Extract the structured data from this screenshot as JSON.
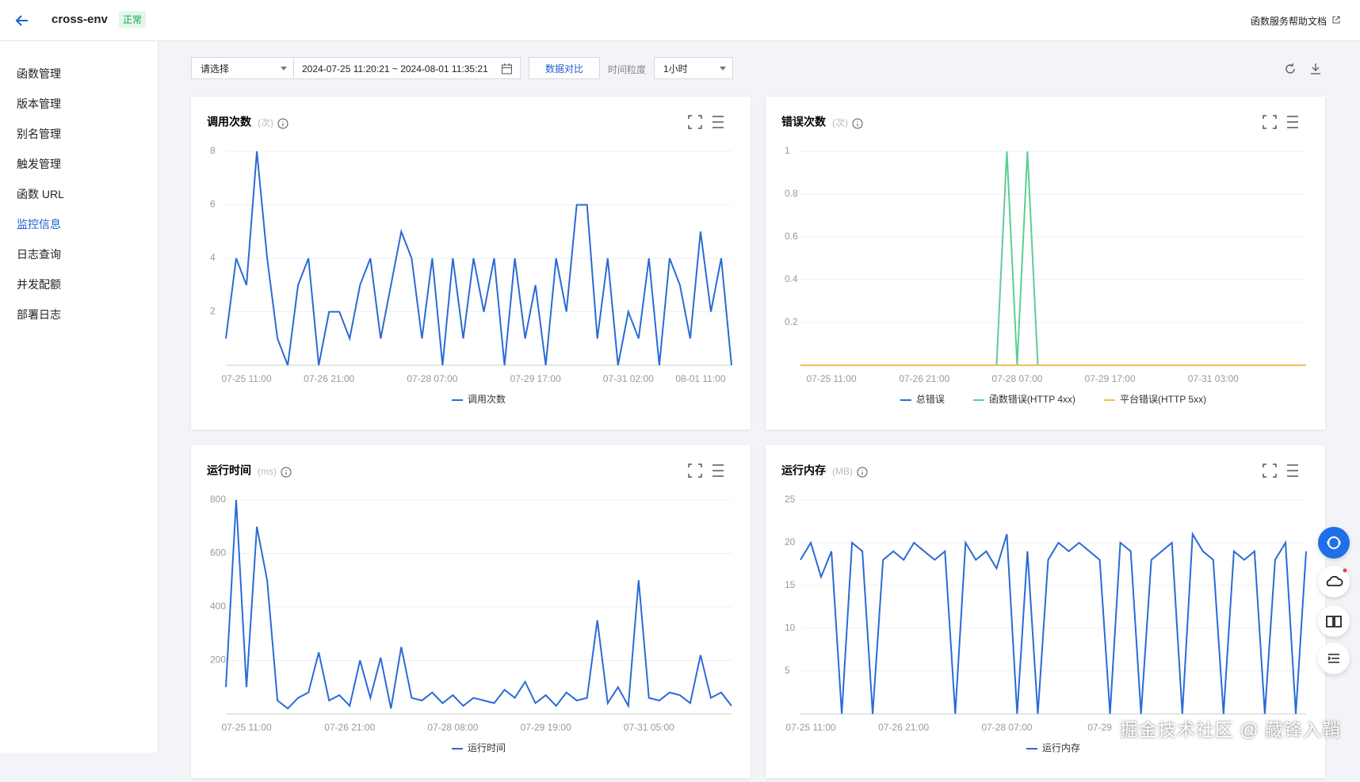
{
  "header": {
    "name": "cross-env",
    "status": "正常",
    "help_link": "函数服务帮助文档"
  },
  "sidebar": {
    "items": [
      "函数管理",
      "版本管理",
      "别名管理",
      "触发管理",
      "函数 URL",
      "监控信息",
      "日志查询",
      "并发配额",
      "部署日志"
    ],
    "active": 5
  },
  "toolbar": {
    "select_placeholder": "请选择",
    "date_range": "2024-07-25 11:20:21 ~ 2024-08-01 11:35:21",
    "compare_button": "数据对比",
    "granularity_label": "时间粒度",
    "granularity": "1小时"
  },
  "chart_data": [
    {
      "type": "line",
      "title": "调用次数",
      "unit": "(次)",
      "categories": [
        null,
        null,
        "07-25 11:00",
        null,
        null,
        null,
        null,
        null,
        null,
        null,
        "07-26 21:00",
        null,
        null,
        null,
        null,
        null,
        null,
        null,
        null,
        null,
        "07-28 07:00",
        null,
        null,
        null,
        null,
        null,
        null,
        null,
        null,
        null,
        "07-29 17:00",
        null,
        null,
        null,
        null,
        null,
        null,
        null,
        null,
        "07-31 02:00",
        null,
        null,
        null,
        null,
        null,
        null,
        "08-01 11:00",
        null,
        null,
        null
      ],
      "series": [
        {
          "name": "调用次数",
          "color": "#2a6bd6",
          "values": [
            1,
            4,
            3,
            8,
            4,
            1,
            0,
            3,
            4,
            0,
            2,
            2,
            1,
            3,
            4,
            1,
            3,
            5,
            4,
            1,
            4,
            0,
            4,
            1,
            4,
            2,
            4,
            0,
            4,
            1,
            3,
            0,
            4,
            2,
            6,
            6,
            1,
            4,
            0,
            2,
            1,
            4,
            0,
            4,
            3,
            1,
            5,
            2,
            4,
            0
          ]
        }
      ],
      "ylim": [
        0,
        8
      ],
      "yticks": [
        2,
        4,
        6,
        8
      ],
      "grid": true
    },
    {
      "type": "line",
      "title": "错误次数",
      "unit": "(次)",
      "categories": [
        null,
        null,
        null,
        "07-25 11:00",
        null,
        null,
        null,
        null,
        null,
        null,
        null,
        null,
        "07-26 21:00",
        null,
        null,
        null,
        null,
        null,
        null,
        null,
        null,
        "07-28 07:00",
        null,
        null,
        null,
        null,
        null,
        null,
        null,
        null,
        "07-29 17:00",
        null,
        null,
        null,
        null,
        null,
        null,
        null,
        null,
        null,
        "07-31 03:00",
        null,
        null,
        null,
        null,
        null,
        null,
        null,
        null,
        null
      ],
      "series": [
        {
          "name": "总错误",
          "color": "#2a6bd6",
          "values": [
            0,
            0,
            0,
            0,
            0,
            0,
            0,
            0,
            0,
            0,
            0,
            0,
            0,
            0,
            0,
            0,
            0,
            0,
            0,
            0,
            0,
            0,
            0,
            0,
            0,
            0,
            0,
            0,
            0,
            0,
            0,
            0,
            0,
            0,
            0,
            0,
            0,
            0,
            0,
            0,
            0,
            0,
            0,
            0,
            0,
            0,
            0,
            0,
            0,
            0
          ]
        },
        {
          "name": "函数错误(HTTP 4xx)",
          "color": "#5ccf93",
          "values": [
            0,
            0,
            0,
            0,
            0,
            0,
            0,
            0,
            0,
            0,
            0,
            0,
            0,
            0,
            0,
            0,
            0,
            0,
            0,
            0,
            1,
            0,
            1,
            0,
            0,
            0,
            0,
            0,
            0,
            0,
            0,
            0,
            0,
            0,
            0,
            0,
            0,
            0,
            0,
            0,
            0,
            0,
            0,
            0,
            0,
            0,
            0,
            0,
            0,
            0
          ]
        },
        {
          "name": "平台错误(HTTP 5xx)",
          "color": "#f3c24a",
          "values": [
            0,
            0,
            0,
            0,
            0,
            0,
            0,
            0,
            0,
            0,
            0,
            0,
            0,
            0,
            0,
            0,
            0,
            0,
            0,
            0,
            0,
            0,
            0,
            0,
            0,
            0,
            0,
            0,
            0,
            0,
            0,
            0,
            0,
            0,
            0,
            0,
            0,
            0,
            0,
            0,
            0,
            0,
            0,
            0,
            0,
            0,
            0,
            0,
            0,
            0
          ]
        }
      ],
      "ylim": [
        0,
        1
      ],
      "yticks": [
        0.2,
        0.4,
        0.6,
        0.8,
        1
      ],
      "grid": true
    },
    {
      "type": "line",
      "title": "运行时间",
      "unit": "(ms)",
      "categories": [
        null,
        null,
        "07-25 11:00",
        null,
        null,
        null,
        null,
        null,
        null,
        null,
        null,
        null,
        "07-26 21:00",
        null,
        null,
        null,
        null,
        null,
        null,
        null,
        null,
        null,
        "07-28 08:00",
        null,
        null,
        null,
        null,
        null,
        null,
        null,
        null,
        "07-29 19:00",
        null,
        null,
        null,
        null,
        null,
        null,
        null,
        null,
        null,
        "07-31 05:00",
        null,
        null,
        null,
        null,
        null,
        null,
        null,
        null
      ],
      "series": [
        {
          "name": "运行时间",
          "color": "#2a6bd6",
          "values": [
            100,
            800,
            100,
            700,
            500,
            50,
            20,
            60,
            80,
            230,
            50,
            70,
            30,
            200,
            60,
            210,
            20,
            250,
            60,
            50,
            80,
            40,
            70,
            30,
            60,
            50,
            40,
            90,
            60,
            120,
            40,
            70,
            30,
            80,
            50,
            60,
            350,
            40,
            100,
            30,
            500,
            60,
            50,
            80,
            70,
            40,
            220,
            60,
            80,
            30
          ]
        }
      ],
      "ylim": [
        0,
        800
      ],
      "yticks": [
        200,
        400,
        600,
        800
      ],
      "grid": true
    },
    {
      "type": "line",
      "title": "运行内存",
      "unit": "(MB)",
      "categories": [
        null,
        "07-25 11:00",
        null,
        null,
        null,
        null,
        null,
        null,
        null,
        null,
        "07-26 21:00",
        null,
        null,
        null,
        null,
        null,
        null,
        null,
        null,
        null,
        "07-28 07:00",
        null,
        null,
        null,
        null,
        null,
        null,
        null,
        null,
        "07-29",
        null,
        null,
        null,
        null,
        null,
        null,
        null,
        null,
        null,
        null,
        null,
        null,
        null,
        null,
        null,
        null,
        null,
        null,
        null,
        null
      ],
      "series": [
        {
          "name": "运行内存",
          "color": "#2a6bd6",
          "values": [
            18,
            20,
            16,
            19,
            0,
            20,
            19,
            0,
            18,
            19,
            18,
            20,
            19,
            18,
            19,
            0,
            20,
            18,
            19,
            17,
            21,
            0,
            19,
            0,
            18,
            20,
            19,
            20,
            19,
            18,
            0,
            20,
            19,
            0,
            18,
            19,
            20,
            0,
            21,
            19,
            18,
            0,
            19,
            18,
            19,
            0,
            18,
            20,
            0,
            19
          ]
        }
      ],
      "ylim": [
        0,
        25
      ],
      "yticks": [
        5,
        10,
        15,
        20,
        25
      ],
      "grid": true
    }
  ],
  "watermark": "掘金技术社区 @ 藏锋入鞘"
}
